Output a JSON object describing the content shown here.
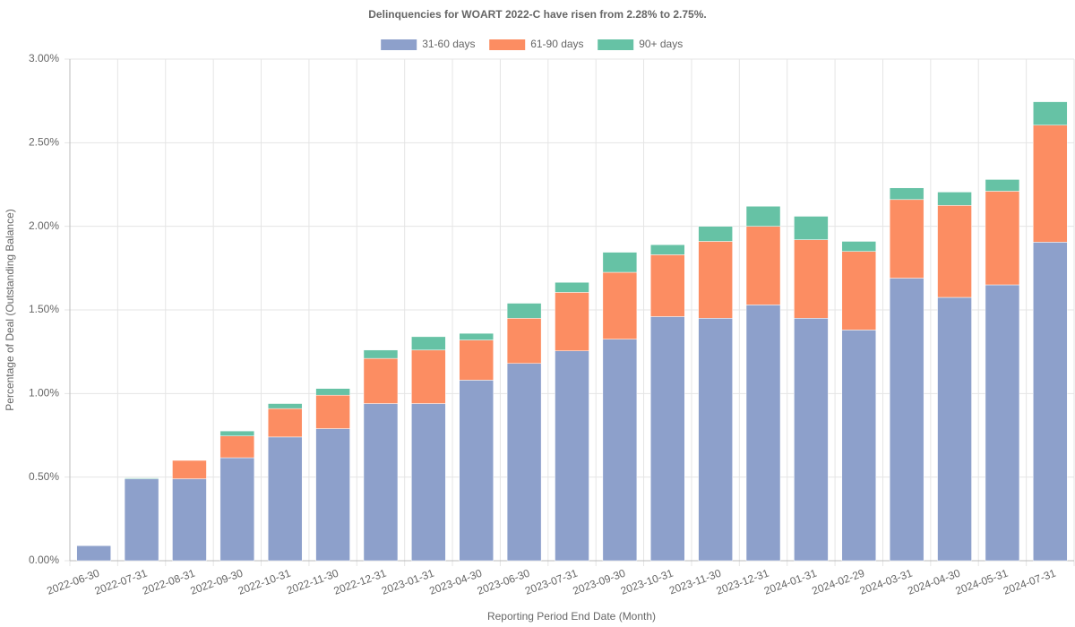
{
  "chart_data": {
    "type": "stacked_bar",
    "title": "Delinquencies for WOART 2022-C have risen from 2.28% to 2.75%.",
    "x_label": "Reporting Period End Date (Month)",
    "y_label": "Percentage of Deal (Outstanding Balance)",
    "categories": [
      "2022-06-30",
      "2022-07-31",
      "2022-08-31",
      "2022-09-30",
      "2022-10-31",
      "2022-11-30",
      "2022-12-31",
      "2023-01-31",
      "2023-04-30",
      "2023-06-30",
      "2023-07-31",
      "2023-09-30",
      "2023-10-31",
      "2023-11-30",
      "2023-12-31",
      "2024-01-31",
      "2024-02-29",
      "2024-03-31",
      "2024-04-30",
      "2024-05-31",
      "2024-07-31"
    ],
    "series": [
      {
        "name": "31-60 days",
        "color": "#8da0cb",
        "values": [
          0.09,
          0.49,
          0.49,
          0.616,
          0.74,
          0.79,
          0.94,
          0.94,
          1.08,
          1.18,
          1.255,
          1.325,
          1.46,
          1.45,
          1.53,
          1.45,
          1.38,
          1.69,
          1.575,
          1.65,
          1.905
        ]
      },
      {
        "name": "61-90 days",
        "color": "#fc8d62",
        "values": [
          0,
          0,
          0.11,
          0.13,
          0.17,
          0.2,
          0.27,
          0.32,
          0.24,
          0.27,
          0.35,
          0.4,
          0.37,
          0.46,
          0.47,
          0.47,
          0.47,
          0.47,
          0.55,
          0.56,
          0.7
        ]
      },
      {
        "name": "90+ days",
        "color": "#66c2a5",
        "values": [
          0,
          0.005,
          0,
          0.03,
          0.03,
          0.04,
          0.05,
          0.08,
          0.04,
          0.09,
          0.06,
          0.12,
          0.06,
          0.09,
          0.12,
          0.14,
          0.06,
          0.07,
          0.08,
          0.07,
          0.14
        ]
      }
    ],
    "ylim": [
      0,
      3
    ],
    "yticks": [
      {
        "value": 0,
        "label": "0.00%"
      },
      {
        "value": 0.5,
        "label": "0.50%"
      },
      {
        "value": 1,
        "label": "1.00%"
      },
      {
        "value": 1.5,
        "label": "1.50%"
      },
      {
        "value": 2,
        "label": "2.00%"
      },
      {
        "value": 2.5,
        "label": "2.50%"
      },
      {
        "value": 3,
        "label": "3.00%"
      }
    ],
    "grid": true,
    "legend": "top"
  }
}
